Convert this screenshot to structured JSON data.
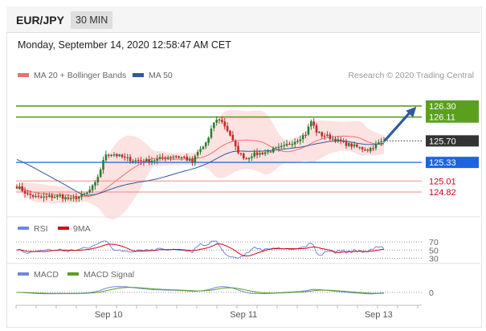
{
  "header": {
    "symbol": "EUR/JPY",
    "timeframe": "30 MIN"
  },
  "timestamp": "Monday, September 14, 2020 12:58:47 AM CET",
  "colors": {
    "up": "#2e7d32",
    "down": "#c62828",
    "ma20": "#e57373",
    "bands": "#fcd8d8",
    "ma50": "#2f5a9c",
    "resistance": "#5aa01e",
    "support_line": "#f08a8a",
    "support_text": "#d0021b",
    "pivot": "#1e63e0",
    "rsi": "#6f86df",
    "signal9": "#d0021b",
    "macd": "#6f86df",
    "macd_signal": "#5aa01e",
    "arrow": "#2f5a9c",
    "last": "#333333"
  },
  "chart_data": [
    {
      "type": "candlestick",
      "panel": "price",
      "legend": [
        {
          "label": "MA 20 + Bollinger Bands",
          "color": "#e57373"
        },
        {
          "label": "MA 50",
          "color": "#2f5a9c"
        }
      ],
      "credit": "Research © 2020 Trading Central",
      "x_ticks": [
        {
          "label": "Sep 10",
          "index": 34
        },
        {
          "label": "Sep 11",
          "index": 84
        },
        {
          "label": "Sep 13",
          "index": 134
        }
      ],
      "ylim": [
        124.42,
        126.7
      ],
      "last_price": 125.7,
      "levels": [
        {
          "label": "126.30",
          "value": 126.3,
          "kind": "resistance"
        },
        {
          "label": "126.11",
          "value": 126.11,
          "kind": "resistance"
        },
        {
          "label": "125.70",
          "value": 125.7,
          "kind": "last"
        },
        {
          "label": "125.33",
          "value": 125.33,
          "kind": "pivot"
        },
        {
          "label": "125.01",
          "value": 125.01,
          "kind": "support"
        },
        {
          "label": "124.82",
          "value": 124.82,
          "kind": "support"
        }
      ],
      "arrow": {
        "from": [
          136,
          125.72
        ],
        "to": [
          148,
          126.29
        ]
      },
      "segments": [
        [
          0,
          124.92
        ],
        [
          4,
          124.78
        ],
        [
          8,
          124.72
        ],
        [
          12,
          124.74
        ],
        [
          16,
          124.75
        ],
        [
          20,
          124.69
        ],
        [
          23,
          124.74
        ],
        [
          26,
          124.8
        ],
        [
          29,
          124.96
        ],
        [
          31,
          125.22
        ],
        [
          33,
          125.48
        ],
        [
          36,
          125.47
        ],
        [
          40,
          125.4
        ],
        [
          44,
          125.36
        ],
        [
          48,
          125.36
        ],
        [
          52,
          125.38
        ],
        [
          55,
          125.42
        ],
        [
          58,
          125.44
        ],
        [
          62,
          125.41
        ],
        [
          65,
          125.33
        ],
        [
          67,
          125.5
        ],
        [
          69,
          125.6
        ],
        [
          71,
          125.74
        ],
        [
          73,
          126.02
        ],
        [
          75,
          126.08
        ],
        [
          77,
          125.96
        ],
        [
          79,
          125.8
        ],
        [
          81,
          125.58
        ],
        [
          83,
          125.46
        ],
        [
          85,
          125.4
        ],
        [
          87,
          125.46
        ],
        [
          90,
          125.48
        ],
        [
          93,
          125.52
        ],
        [
          96,
          125.56
        ],
        [
          99,
          125.6
        ],
        [
          101,
          125.66
        ],
        [
          103,
          125.7
        ],
        [
          105,
          125.76
        ],
        [
          107,
          125.82
        ],
        [
          109,
          126.04
        ],
        [
          111,
          125.86
        ],
        [
          113,
          125.8
        ],
        [
          115,
          125.78
        ],
        [
          118,
          125.72
        ],
        [
          121,
          125.66
        ],
        [
          124,
          125.62
        ],
        [
          127,
          125.58
        ],
        [
          130,
          125.55
        ],
        [
          132,
          125.6
        ],
        [
          134,
          125.66
        ],
        [
          136,
          125.7
        ]
      ]
    },
    {
      "type": "line",
      "panel": "rsi",
      "legend": [
        {
          "label": "RSI",
          "color": "#6f86df"
        },
        {
          "label": "9MA",
          "color": "#d0021b"
        }
      ],
      "levels": [
        {
          "label": "70",
          "value": 70
        },
        {
          "label": "50",
          "value": 50
        },
        {
          "label": "30",
          "value": 30
        }
      ],
      "ylim": [
        25,
        80
      ]
    },
    {
      "type": "line",
      "panel": "macd",
      "legend": [
        {
          "label": "MACD",
          "color": "#6f86df"
        },
        {
          "label": "MACD Signal",
          "color": "#5aa01e"
        }
      ],
      "levels": [
        {
          "label": "0",
          "value": 0
        }
      ],
      "ylim": [
        -0.35,
        0.35
      ]
    }
  ]
}
